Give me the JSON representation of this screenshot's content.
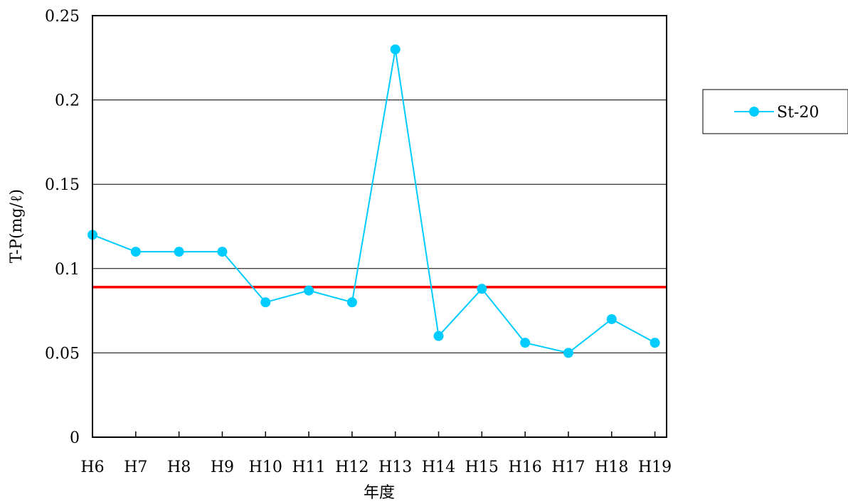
{
  "chart_data": {
    "type": "line",
    "title": "",
    "xlabel": "年度",
    "ylabel": "T-P(mg/ℓ)",
    "categories": [
      "H6",
      "H7",
      "H8",
      "H9",
      "H10",
      "H11",
      "H12",
      "H13",
      "H14",
      "H15",
      "H16",
      "H17",
      "H18",
      "H19"
    ],
    "series": [
      {
        "name": "St-20",
        "color": "#00CCFF",
        "marker": "circle",
        "values": [
          0.12,
          0.11,
          0.11,
          0.11,
          0.08,
          0.087,
          0.08,
          0.23,
          0.06,
          0.088,
          0.056,
          0.05,
          0.07,
          0.056
        ]
      }
    ],
    "reference_line": {
      "value": 0.089,
      "color": "#FF0000"
    },
    "ylim": [
      0,
      0.25
    ],
    "yticks": [
      0,
      0.05,
      0.1,
      0.15,
      0.2,
      0.25
    ],
    "ytick_labels": [
      "0",
      "0.05",
      "0.1",
      "0.15",
      "0.2",
      "0.25"
    ],
    "grid": "horizontal",
    "legend_position": "right"
  }
}
